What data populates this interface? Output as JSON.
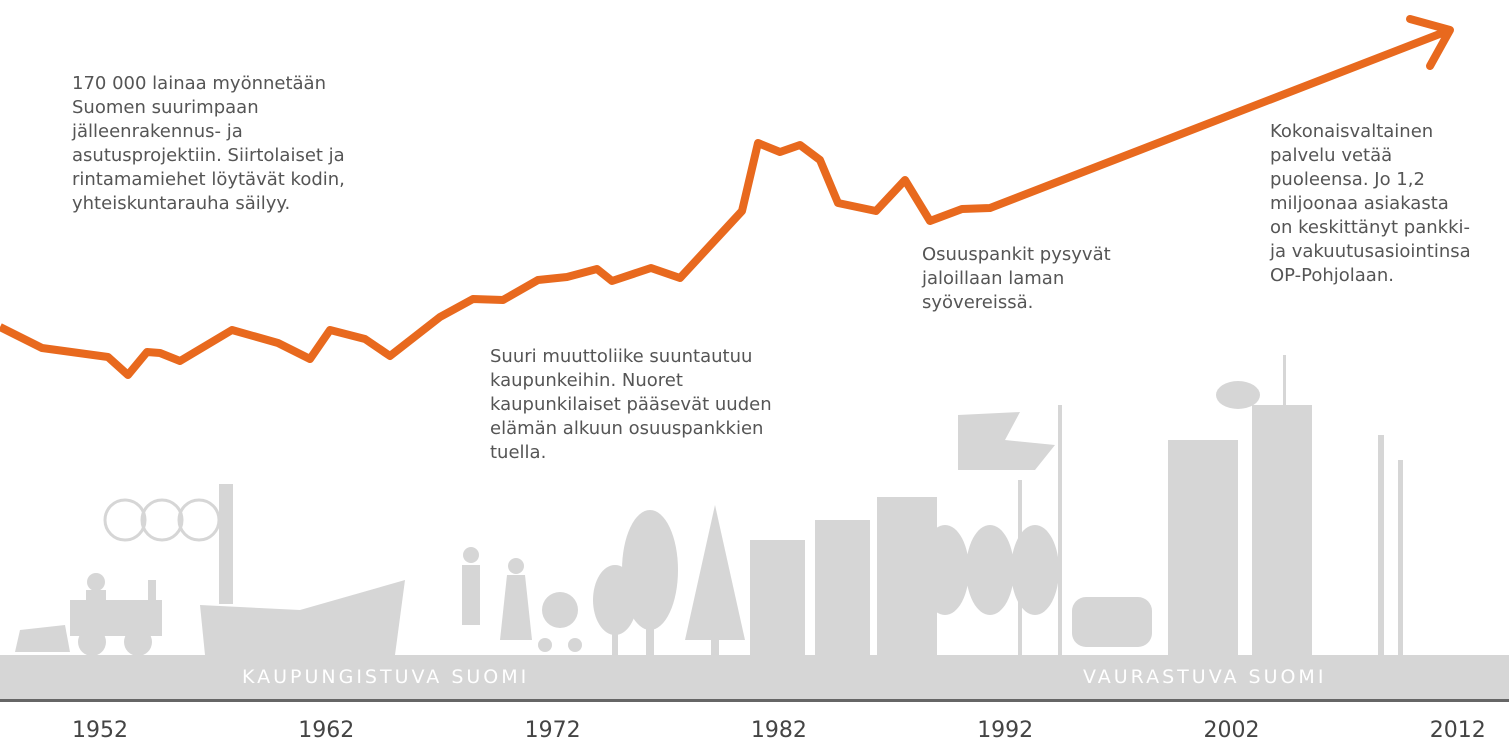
{
  "notes": [
    {
      "lines": [
        "170 000 lainaa myönnetään",
        "Suomen suurimpaan",
        "jälleenrakennus- ja",
        "asutusprojektiin. Siirtolaiset ja",
        "rintamamiehet löytävät kodin,",
        "yhteiskuntarauha säilyy."
      ]
    },
    {
      "lines": [
        "Suuri muuttoliike suuntautuu",
        "kaupunkeihin. Nuoret",
        "kaupunkilaiset pääsevät uuden",
        "elämän alkuun osuuspankkien",
        "tuella."
      ]
    },
    {
      "lines": [
        "Osuuspankit pysyvät",
        "jaloillaan laman",
        "syövereissä."
      ]
    },
    {
      "lines": [
        "Kokonaisvaltainen",
        "palvelu vetää",
        "puoleensa. Jo 1,2",
        "miljoonaa asiakasta",
        "on keskittänyt pankki-",
        "ja vakuutusasiointinsa",
        "OP-Pohjolaan."
      ]
    }
  ],
  "band_labels": [
    "KAUPUNGISTUVA SUOMI",
    "VAURASTUVA SUOMI"
  ],
  "years": [
    "1952",
    "1962",
    "1972",
    "1982",
    "1992",
    "2002",
    "2012"
  ]
}
